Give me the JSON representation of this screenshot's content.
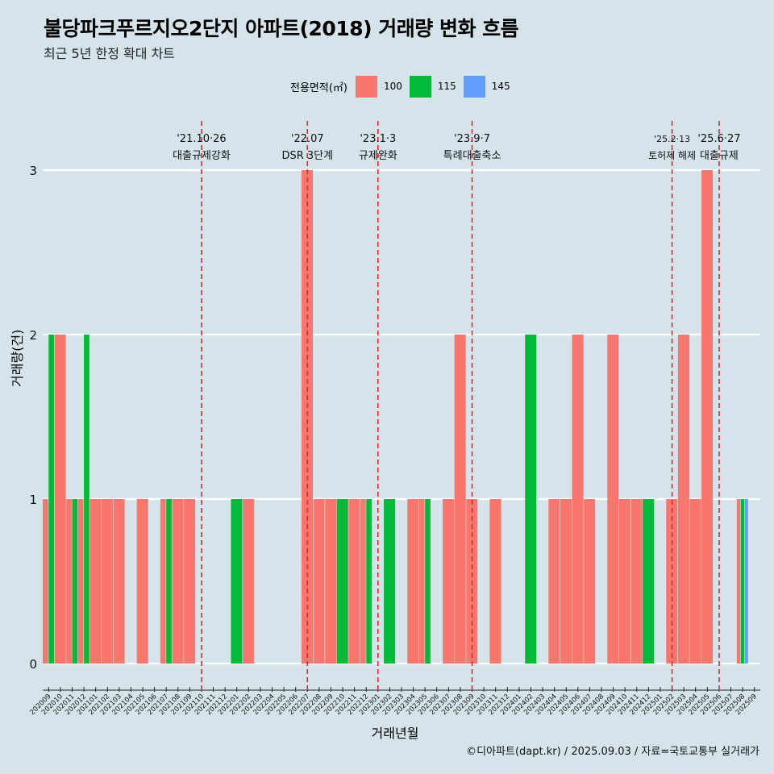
{
  "header": {
    "title": "불당파크푸르지오2단지 아파트(2018) 거래량 변화 흐름",
    "subtitle": "최근 5년 한정 확대 차트"
  },
  "legend": {
    "title": "전용면적(㎡)",
    "items": [
      {
        "label": "100",
        "color": "#f8766d"
      },
      {
        "label": "115",
        "color": "#00ba38"
      },
      {
        "label": "145",
        "color": "#619cff"
      }
    ]
  },
  "footer": {
    "caption": "©디아파트(dapt.kr) / 2025.09.03 / 자료=국토교통부 실거래가"
  },
  "chart_data": {
    "type": "bar",
    "xlabel": "거래년월",
    "ylabel": "거래량(건)",
    "ylim": [
      0,
      3
    ],
    "yticks": [
      "0",
      "1",
      "2",
      "3"
    ],
    "grid": true,
    "categories": [
      "202009",
      "202010",
      "202011",
      "202012",
      "202101",
      "202102",
      "202103",
      "202104",
      "202105",
      "202106",
      "202107",
      "202108",
      "202109",
      "202110",
      "202111",
      "202112",
      "202201",
      "202202",
      "202203",
      "202204",
      "202205",
      "202206",
      "202207",
      "202208",
      "202209",
      "202210",
      "202211",
      "202212",
      "202301",
      "202302",
      "202303",
      "202304",
      "202305",
      "202306",
      "202307",
      "202308",
      "202309",
      "202310",
      "202311",
      "202312",
      "202401",
      "202402",
      "202403",
      "202404",
      "202405",
      "202406",
      "202407",
      "202408",
      "202409",
      "202410",
      "202411",
      "202412",
      "202501",
      "202502",
      "202503",
      "202504",
      "202505",
      "202506",
      "202507",
      "202508",
      "202509"
    ],
    "series": [
      {
        "name": "100",
        "color": "#f8766d",
        "values": [
          1,
          2,
          1,
          1,
          1,
          1,
          1,
          0,
          1,
          0,
          1,
          1,
          1,
          0,
          0,
          0,
          0,
          1,
          0,
          0,
          0,
          0,
          3,
          1,
          1,
          0,
          1,
          1,
          0,
          0,
          0,
          1,
          1,
          0,
          1,
          2,
          1,
          0,
          1,
          0,
          0,
          0,
          0,
          1,
          1,
          2,
          1,
          0,
          2,
          1,
          1,
          0,
          0,
          1,
          2,
          1,
          3,
          0,
          0,
          1,
          0
        ]
      },
      {
        "name": "115",
        "color": "#00ba38",
        "values": [
          2,
          0,
          1,
          2,
          0,
          0,
          0,
          0,
          0,
          0,
          1,
          0,
          0,
          0,
          0,
          0,
          1,
          0,
          0,
          0,
          0,
          0,
          0,
          0,
          0,
          1,
          0,
          1,
          0,
          1,
          0,
          0,
          1,
          0,
          0,
          0,
          0,
          0,
          0,
          0,
          0,
          2,
          0,
          0,
          0,
          0,
          0,
          0,
          0,
          0,
          0,
          1,
          0,
          0,
          0,
          0,
          0,
          0,
          0,
          1,
          0
        ]
      },
      {
        "name": "145",
        "color": "#619cff",
        "values": [
          0,
          0,
          0,
          0,
          0,
          0,
          0,
          0,
          0,
          0,
          0,
          0,
          0,
          0,
          0,
          0,
          0,
          0,
          0,
          0,
          0,
          0,
          0,
          0,
          0,
          0,
          0,
          0,
          0,
          0,
          0,
          0,
          0,
          0,
          0,
          0,
          0,
          0,
          0,
          0,
          0,
          0,
          0,
          0,
          0,
          0,
          0,
          0,
          0,
          0,
          0,
          0,
          0,
          0,
          0,
          0,
          0,
          0,
          0,
          1,
          0
        ]
      }
    ],
    "events": [
      {
        "x": "202110",
        "date": "'21.10·26",
        "label": "대출규제강화"
      },
      {
        "x": "202207",
        "date": "'22.07",
        "label": "DSR 3단계"
      },
      {
        "x": "202301",
        "date": "'23.1·3",
        "label": "규제완화"
      },
      {
        "x": "202309",
        "date": "'23.9·7",
        "label": "특례대출축소"
      },
      {
        "x": "202502",
        "date": "'25.2·13",
        "label": "토허제 해제"
      },
      {
        "x": "202506",
        "date": "'25.6·27",
        "label": "대출규제"
      }
    ]
  }
}
